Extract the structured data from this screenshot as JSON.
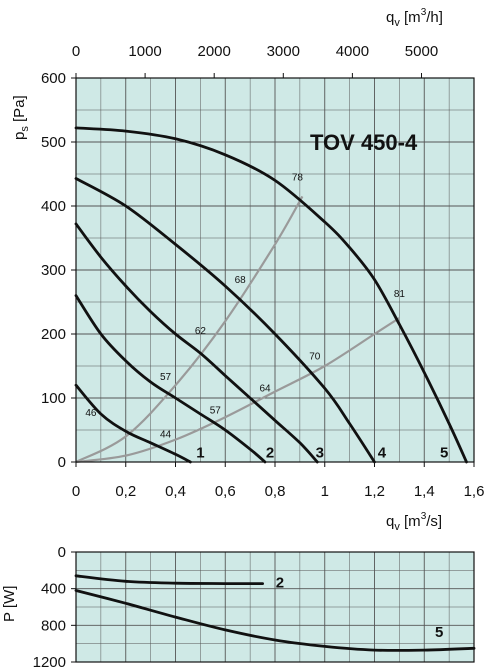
{
  "chart_data": [
    {
      "type": "line",
      "model_label": "TOV 450-4",
      "ylabel_main": "p",
      "ylabel_sub": "s",
      "ylabel_unit": "[Pa]",
      "xlabel_main": "q",
      "xlabel_sub": "v",
      "xlabel_unit_pre": "[m",
      "xlabel_unit_sup": "3",
      "xlabel_unit_post": "/s]",
      "top_xlabel_main": "q",
      "top_xlabel_sub": "v",
      "top_xlabel_unit_pre": "[m",
      "top_xlabel_unit_sup": "3",
      "top_xlabel_unit_post": "/h]",
      "xlim": [
        0,
        1.6
      ],
      "ylim": [
        0,
        600
      ],
      "top_xlim": [
        0,
        5760
      ],
      "x_ticks": [
        "0",
        "0,2",
        "0,4",
        "0,6",
        "0,8",
        "1",
        "1,2",
        "1,4",
        "1,6"
      ],
      "y_ticks": [
        "0",
        "100",
        "200",
        "300",
        "400",
        "500",
        "600"
      ],
      "top_x_ticks": [
        "0",
        "1000",
        "2000",
        "3000",
        "4000",
        "5000"
      ],
      "grid": true,
      "series": [
        {
          "name": "1",
          "x": [
            0,
            0.1,
            0.2,
            0.3,
            0.4,
            0.46
          ],
          "y": [
            120,
            75,
            48,
            30,
            12,
            0
          ]
        },
        {
          "name": "2",
          "x": [
            0,
            0.1,
            0.2,
            0.3,
            0.4,
            0.5,
            0.6,
            0.7,
            0.76
          ],
          "y": [
            260,
            200,
            158,
            125,
            100,
            75,
            50,
            20,
            0
          ]
        },
        {
          "name": "3",
          "x": [
            0,
            0.1,
            0.2,
            0.3,
            0.4,
            0.5,
            0.6,
            0.7,
            0.8,
            0.9,
            0.97
          ],
          "y": [
            372,
            320,
            275,
            235,
            200,
            170,
            135,
            100,
            65,
            30,
            0
          ]
        },
        {
          "name": "4",
          "x": [
            0,
            0.2,
            0.4,
            0.6,
            0.8,
            1.0,
            1.1,
            1.2
          ],
          "y": [
            443,
            400,
            340,
            275,
            200,
            115,
            60,
            0
          ]
        },
        {
          "name": "5",
          "x": [
            0,
            0.2,
            0.4,
            0.6,
            0.8,
            1.0,
            1.1,
            1.2,
            1.3,
            1.4,
            1.5,
            1.57
          ],
          "y": [
            522,
            517,
            505,
            480,
            440,
            375,
            335,
            285,
            215,
            140,
            60,
            0
          ]
        }
      ],
      "efficiency_curves": [
        {
          "x": [
            0,
            0.2,
            0.4,
            0.6,
            0.8,
            0.91
          ],
          "y": [
            0,
            40,
            120,
            220,
            340,
            415
          ]
        },
        {
          "x": [
            0,
            0.2,
            0.4,
            0.6,
            0.8,
            1.0,
            1.2,
            1.3
          ],
          "y": [
            0,
            10,
            35,
            70,
            110,
            150,
            200,
            225
          ]
        }
      ],
      "efficiency_labels": [
        {
          "text": "78",
          "x": 0.89,
          "y": 440
        },
        {
          "text": "81",
          "x": 1.3,
          "y": 258
        },
        {
          "text": "68",
          "x": 0.66,
          "y": 280
        },
        {
          "text": "62",
          "x": 0.5,
          "y": 200
        },
        {
          "text": "70",
          "x": 0.96,
          "y": 160
        },
        {
          "text": "57",
          "x": 0.36,
          "y": 128
        },
        {
          "text": "64",
          "x": 0.76,
          "y": 110
        },
        {
          "text": "57",
          "x": 0.56,
          "y": 76
        },
        {
          "text": "46",
          "x": 0.06,
          "y": 72
        },
        {
          "text": "44",
          "x": 0.36,
          "y": 38
        }
      ],
      "curve_label_positions": [
        {
          "text": "1",
          "x": 0.5,
          "y": 15
        },
        {
          "text": "2",
          "x": 0.78,
          "y": 15
        },
        {
          "text": "3",
          "x": 0.98,
          "y": 15
        },
        {
          "text": "4",
          "x": 1.23,
          "y": 15
        },
        {
          "text": "5",
          "x": 1.48,
          "y": 15
        }
      ]
    },
    {
      "type": "line",
      "ylabel_main": "P",
      "ylabel_unit": "[W]",
      "xlim": [
        0,
        1.6
      ],
      "ylim": [
        0,
        1200
      ],
      "y_inverted": true,
      "y_ticks": [
        "0",
        "400",
        "800",
        "1200"
      ],
      "grid": true,
      "series": [
        {
          "name": "2",
          "x": [
            0,
            0.2,
            0.4,
            0.6,
            0.75
          ],
          "y": [
            260,
            320,
            340,
            345,
            345
          ]
        },
        {
          "name": "5",
          "x": [
            0,
            0.2,
            0.4,
            0.6,
            0.8,
            1.0,
            1.2,
            1.4,
            1.6
          ],
          "y": [
            420,
            560,
            710,
            850,
            960,
            1030,
            1070,
            1070,
            1050
          ]
        }
      ],
      "curve_label_positions": [
        {
          "text": "2",
          "x": 0.82,
          "y": 330
        },
        {
          "text": "5",
          "x": 1.46,
          "y": 870
        }
      ]
    }
  ]
}
